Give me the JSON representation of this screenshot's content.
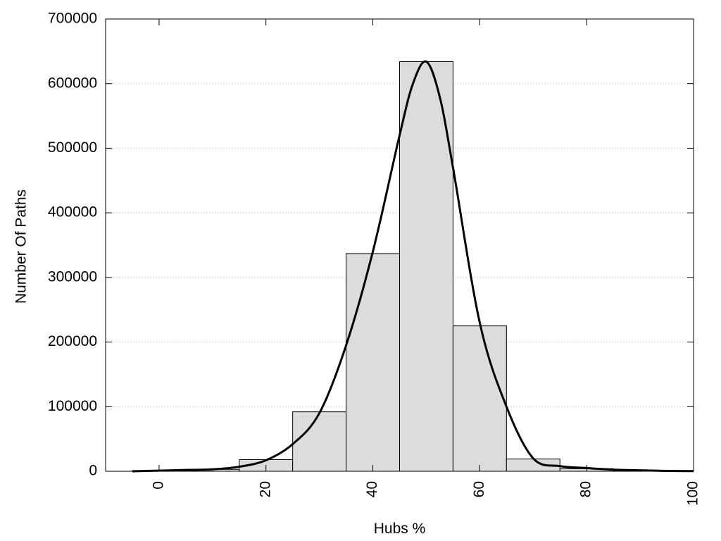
{
  "chart_data": {
    "type": "bar",
    "title": "",
    "xlabel": "Hubs %",
    "ylabel": "Number Of Paths",
    "xlim": [
      -10,
      100
    ],
    "ylim": [
      0,
      700000
    ],
    "x_ticks": [
      0,
      20,
      40,
      60,
      80,
      100
    ],
    "y_ticks": [
      0,
      100000,
      200000,
      300000,
      400000,
      500000,
      600000,
      700000
    ],
    "grid": {
      "horizontal": true,
      "style": "dotted"
    },
    "legend": "none",
    "bar_width": 10,
    "bars": [
      {
        "x": 0,
        "value": 1000
      },
      {
        "x": 10,
        "value": 3000
      },
      {
        "x": 20,
        "value": 18000
      },
      {
        "x": 30,
        "value": 92000
      },
      {
        "x": 40,
        "value": 337000
      },
      {
        "x": 50,
        "value": 634000
      },
      {
        "x": 60,
        "value": 225000
      },
      {
        "x": 70,
        "value": 19000
      },
      {
        "x": 80,
        "value": 4000
      },
      {
        "x": 90,
        "value": 1000
      }
    ],
    "curve": {
      "type": "line",
      "x": [
        -5,
        0,
        5,
        10,
        15,
        20,
        25,
        30,
        35,
        40,
        45,
        47.5,
        50,
        52.5,
        55,
        60,
        65,
        70,
        75,
        80,
        85,
        90,
        95,
        100
      ],
      "y": [
        0,
        1000,
        2000,
        3000,
        7000,
        17000,
        42000,
        90000,
        195000,
        340000,
        520000,
        600000,
        634000,
        580000,
        470000,
        230000,
        100000,
        20000,
        8000,
        5000,
        2500,
        1500,
        600,
        300
      ]
    },
    "colors": {
      "bar_fill": "#dcdcdc",
      "bar_stroke": "#000000",
      "curve": "#000000",
      "grid": "#bbbbbb",
      "frame": "#000000"
    }
  }
}
